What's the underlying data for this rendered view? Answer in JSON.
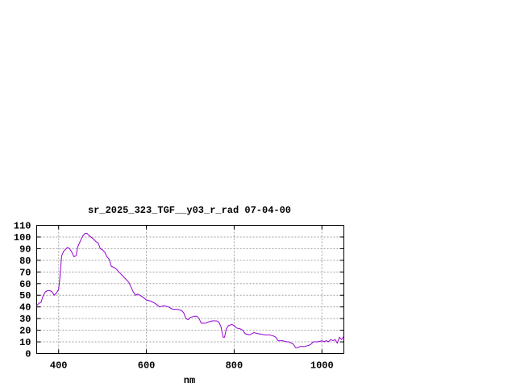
{
  "chart_data": {
    "type": "line",
    "title": "sr_2025_323_TGF__y03_r_rad 07-04-00",
    "xlabel": "nm",
    "ylabel": "",
    "xlim": [
      350,
      1050
    ],
    "ylim": [
      0,
      110
    ],
    "xticks": [
      400,
      600,
      800,
      1000
    ],
    "yticks": [
      0,
      10,
      20,
      30,
      40,
      50,
      60,
      70,
      80,
      90,
      100,
      110
    ],
    "grid": true,
    "legend": "none",
    "line_color": "#9400d3",
    "series": [
      {
        "x": [
          350,
          355,
          360,
          365,
          370,
          375,
          380,
          385,
          390,
          395,
          400,
          403,
          407,
          412,
          420,
          425,
          430,
          435,
          440,
          443,
          450,
          455,
          460,
          465,
          470,
          480,
          485,
          490,
          495,
          500,
          505,
          510,
          515,
          520,
          525,
          530,
          540,
          550,
          560,
          565,
          570,
          575,
          580,
          585,
          590,
          600,
          610,
          620,
          630,
          640,
          650,
          660,
          670,
          680,
          685,
          690,
          695,
          700,
          710,
          715,
          720,
          725,
          730,
          735,
          740,
          750,
          760,
          765,
          770,
          775,
          778,
          782,
          787,
          795,
          800,
          805,
          815,
          820,
          825,
          835,
          845,
          855,
          870,
          880,
          890,
          895,
          900,
          910,
          920,
          925,
          935,
          940,
          945,
          950,
          955,
          960,
          970,
          975,
          980,
          990,
          1000,
          1005,
          1010,
          1015,
          1020,
          1025,
          1030,
          1035,
          1040,
          1045,
          1050
        ],
        "y": [
          41,
          43,
          44,
          50,
          53,
          54,
          54,
          53,
          50,
          52,
          55,
          65,
          84,
          88,
          91,
          90,
          87,
          83,
          84,
          91,
          97,
          101,
          103,
          103,
          101,
          98,
          96,
          95,
          90,
          89,
          87,
          83,
          81,
          75,
          74,
          73,
          69,
          65,
          61,
          57,
          53,
          50,
          51,
          50,
          49,
          46,
          45,
          43,
          40,
          41,
          40,
          38,
          38,
          37,
          35,
          30,
          29,
          31,
          32,
          32,
          30,
          26,
          26,
          26,
          27,
          28,
          28,
          27,
          23,
          14,
          14,
          21,
          24,
          25,
          24,
          22,
          21,
          20,
          17,
          16,
          18,
          17,
          16,
          16,
          15,
          14,
          11,
          11,
          10,
          10,
          8,
          5,
          5,
          6,
          6,
          6,
          7,
          8,
          10,
          10,
          11,
          10,
          11,
          10,
          12,
          11,
          12,
          9,
          14,
          12,
          15
        ]
      }
    ]
  }
}
